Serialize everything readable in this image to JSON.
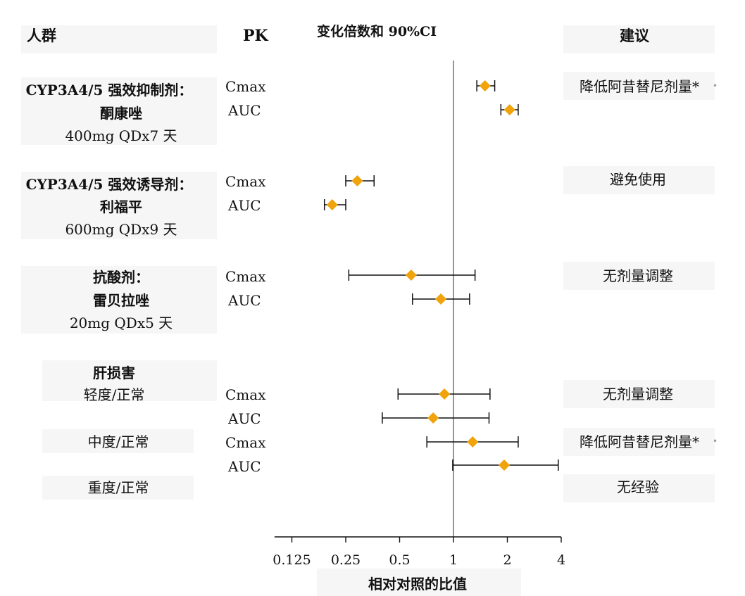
{
  "headers": {
    "population": "人群",
    "pk": "PK",
    "ratio": "变化倍数和 90%CI",
    "recommendation": "建议"
  },
  "groups": [
    {
      "lines": [
        "CYP3A4/5 强效抑制剂：",
        "酮康唑",
        "400mg QDx7 天"
      ],
      "recommendation": "降低阿昔替尼剂量*"
    },
    {
      "lines": [
        "CYP3A4/5 强效诱导剂：",
        "利福平",
        "600mg QDx9 天"
      ],
      "recommendation": "避免使用"
    },
    {
      "lines": [
        "抗酸剂：",
        "雷贝拉唑",
        "20mg QDx5 天"
      ],
      "recommendation": "无剂量调整"
    },
    {
      "lines": [
        "肝损害",
        "轻度/正常",
        "中度/正常",
        "重度/正常"
      ],
      "recommendations": [
        "无剂量调整",
        "降低阿昔替尼剂量*",
        "无经验"
      ]
    }
  ],
  "chart_data": {
    "type": "forest",
    "title": "变化倍数和 90%CI",
    "xlabel": "相对对照的比值",
    "xscale": "log2",
    "xlim": [
      0.1,
      4
    ],
    "xticks": [
      0.125,
      0.25,
      0.5,
      1,
      2,
      4
    ],
    "xtick_labels": [
      "0.125",
      "0.25",
      "0.5",
      "1",
      "2",
      "4"
    ],
    "reference_line": 1,
    "marker_color": "#f0a30a",
    "rows": [
      {
        "group": "酮康唑",
        "pk": "Cmax",
        "estimate": 1.5,
        "lower": 1.35,
        "upper": 1.7
      },
      {
        "group": "酮康唑",
        "pk": "AUC",
        "estimate": 2.06,
        "lower": 1.84,
        "upper": 2.3
      },
      {
        "group": "利福平",
        "pk": "Cmax",
        "estimate": 0.29,
        "lower": 0.25,
        "upper": 0.36
      },
      {
        "group": "利福平",
        "pk": "AUC",
        "estimate": 0.21,
        "lower": 0.19,
        "upper": 0.25
      },
      {
        "group": "雷贝拉唑",
        "pk": "Cmax",
        "estimate": 0.58,
        "lower": 0.26,
        "upper": 1.32
      },
      {
        "group": "雷贝拉唑",
        "pk": "AUC",
        "estimate": 0.85,
        "lower": 0.59,
        "upper": 1.23
      },
      {
        "group": "轻度/正常",
        "pk": "Cmax",
        "estimate": 0.89,
        "lower": 0.49,
        "upper": 1.6
      },
      {
        "group": "轻度/正常",
        "pk": "AUC",
        "estimate": 0.77,
        "lower": 0.4,
        "upper": 1.58
      },
      {
        "group": "中度/正常",
        "pk": "Cmax",
        "estimate": 1.28,
        "lower": 0.71,
        "upper": 2.3
      },
      {
        "group": "中度/正常",
        "pk": "AUC",
        "estimate": 1.92,
        "lower": 0.99,
        "upper": 3.85
      }
    ]
  }
}
